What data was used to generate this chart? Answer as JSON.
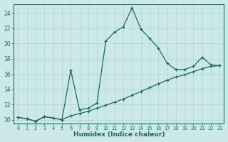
{
  "xlabel": "Humidex (Indice chaleur)",
  "bg_color": "#cce8e8",
  "line_color": "#1a6b5a",
  "grid_color": "#aad4d4",
  "xlim": [
    -0.5,
    23.5
  ],
  "ylim": [
    9.5,
    25.2
  ],
  "yticks": [
    10,
    12,
    14,
    16,
    18,
    20,
    22,
    24
  ],
  "xticks": [
    0,
    1,
    2,
    3,
    4,
    5,
    6,
    7,
    8,
    9,
    10,
    11,
    12,
    13,
    14,
    15,
    16,
    17,
    18,
    19,
    20,
    21,
    22,
    23
  ],
  "line1_x": [
    0,
    1,
    2,
    3,
    4,
    5,
    6,
    7,
    8,
    9,
    10,
    11,
    12,
    13,
    14,
    15,
    16,
    17,
    18,
    19,
    20,
    21,
    22,
    23
  ],
  "line1_y": [
    10.3,
    10.1,
    9.8,
    10.4,
    10.2,
    10.0,
    16.5,
    11.3,
    11.5,
    12.2,
    20.3,
    21.5,
    22.2,
    24.7,
    21.9,
    20.7,
    19.4,
    17.4,
    16.6,
    16.6,
    17.0,
    18.2,
    17.2,
    17.1
  ],
  "line2_x": [
    0,
    1,
    2,
    3,
    4,
    5,
    6,
    7,
    8,
    9,
    10,
    11,
    12,
    13,
    14,
    15,
    16,
    17,
    18,
    19,
    20,
    21,
    22,
    23
  ],
  "line2_y": [
    10.3,
    10.1,
    9.8,
    10.4,
    10.2,
    10.0,
    10.5,
    10.8,
    11.1,
    11.5,
    11.9,
    12.3,
    12.7,
    13.2,
    13.7,
    14.2,
    14.7,
    15.2,
    15.6,
    15.9,
    16.3,
    16.7,
    17.0,
    17.1
  ]
}
